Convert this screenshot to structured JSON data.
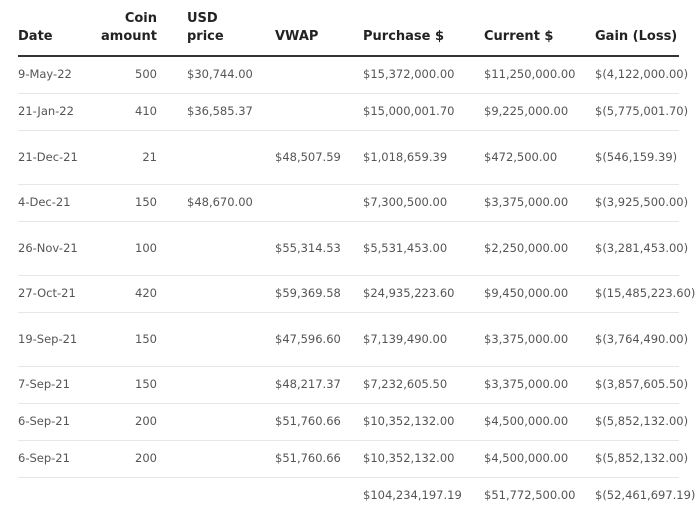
{
  "headers": {
    "date": "Date",
    "coin": "Coin\namount",
    "usd": "USD\nprice",
    "vwap": "VWAP",
    "purchase": "Purchase $",
    "current": "Current $",
    "gain": "Gain (Loss)"
  },
  "rows": [
    {
      "date": "9-May-22",
      "coin": "500",
      "usd": "$30,744.00",
      "vwap": "",
      "purchase": "$15,372,000.00",
      "current": "$11,250,000.00",
      "gain": "$(4,122,000.00)"
    },
    {
      "date": "21-Jan-22",
      "coin": "410",
      "usd": "$36,585.37",
      "vwap": "",
      "purchase": "$15,000,001.70",
      "current": "$9,225,000.00",
      "gain": "$(5,775,001.70)"
    },
    {
      "date": "21-Dec-21",
      "coin": "21",
      "usd": "",
      "vwap": "$48,507.59",
      "purchase": "$1,018,659.39",
      "current": "$472,500.00",
      "gain": "$(546,159.39)"
    },
    {
      "date": "4-Dec-21",
      "coin": "150",
      "usd": "$48,670.00",
      "vwap": "",
      "purchase": "$7,300,500.00",
      "current": "$3,375,000.00",
      "gain": "$(3,925,500.00)"
    },
    {
      "date": "26-Nov-21",
      "coin": "100",
      "usd": "",
      "vwap": "$55,314.53",
      "purchase": "$5,531,453.00",
      "current": "$2,250,000.00",
      "gain": "$(3,281,453.00)"
    },
    {
      "date": "27-Oct-21",
      "coin": "420",
      "usd": "",
      "vwap": "$59,369.58",
      "purchase": "$24,935,223.60",
      "current": "$9,450,000.00",
      "gain": "$(15,485,223.60)"
    },
    {
      "date": "19-Sep-21",
      "coin": "150",
      "usd": "",
      "vwap": "$47,596.60",
      "purchase": "$7,139,490.00",
      "current": "$3,375,000.00",
      "gain": "$(3,764,490.00)"
    },
    {
      "date": "7-Sep-21",
      "coin": "150",
      "usd": "",
      "vwap": "$48,217.37",
      "purchase": "$7,232,605.50",
      "current": "$3,375,000.00",
      "gain": "$(3,857,605.50)"
    },
    {
      "date": "6-Sep-21",
      "coin": "200",
      "usd": "",
      "vwap": "$51,760.66",
      "purchase": "$10,352,132.00",
      "current": "$4,500,000.00",
      "gain": "$(5,852,132.00)"
    },
    {
      "date": "6-Sep-21",
      "coin": "200",
      "usd": "",
      "vwap": "$51,760.66",
      "purchase": "$10,352,132.00",
      "current": "$4,500,000.00",
      "gain": "$(5,852,132.00)"
    }
  ],
  "totals": {
    "purchase": "$104,234,197.19",
    "current": "$51,772,500.00",
    "gain": "$(52,461,697.19)"
  }
}
